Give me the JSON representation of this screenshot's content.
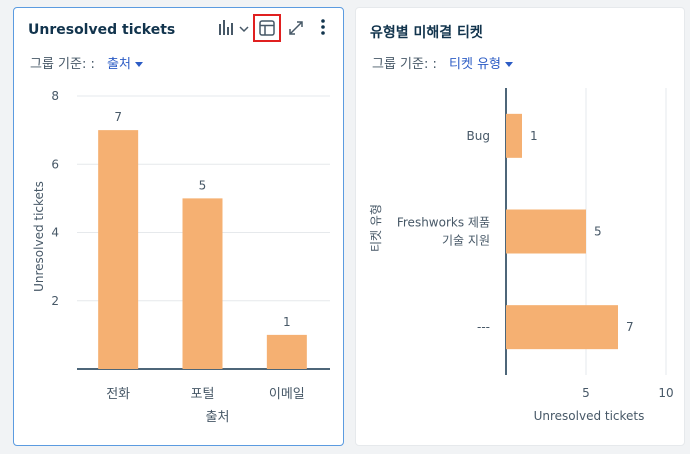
{
  "left_card": {
    "title": "Unresolved tickets by sou",
    "group_label": "그룹 기준: :",
    "group_value": "출처",
    "chart_data": {
      "type": "bar",
      "categories": [
        "전화",
        "포털",
        "이메일"
      ],
      "values": [
        7,
        5,
        1
      ],
      "xlabel": "출처",
      "ylabel": "Unresolved tickets",
      "ylim": [
        0,
        8
      ],
      "yticks": [
        2,
        4,
        6,
        8
      ],
      "grid": true,
      "bar_color": "#f5b072"
    }
  },
  "right_card": {
    "title": "유형별 미해결 티켓",
    "group_label": "그룹 기준: :",
    "group_value": "티켓 유형",
    "chart_data": {
      "type": "bar",
      "orientation": "horizontal",
      "categories": [
        "Bug",
        "Freshworks 제품\n기술 지원",
        "---"
      ],
      "values": [
        1,
        5,
        7
      ],
      "xlabel": "Unresolved tickets",
      "ylabel": "티켓 유형",
      "xlim": [
        0,
        10
      ],
      "xticks": [
        5,
        10
      ],
      "grid": true,
      "bar_color": "#f5b072"
    }
  },
  "colors": {
    "accent": "#2c5cc5",
    "highlight": "#e02020",
    "bar": "#f5b072"
  }
}
